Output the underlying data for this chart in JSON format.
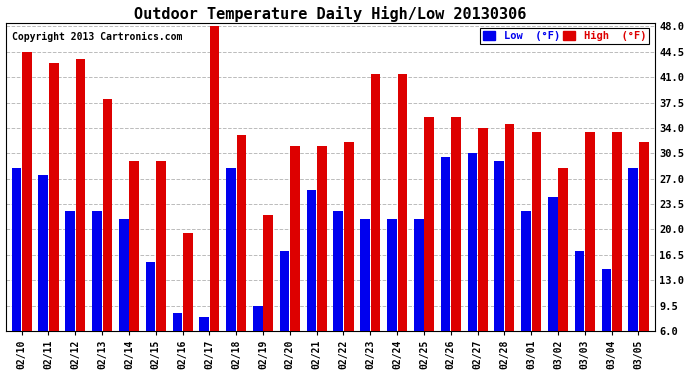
{
  "title": "Outdoor Temperature Daily High/Low 20130306",
  "copyright": "Copyright 2013 Cartronics.com",
  "legend_low_label": "Low  (°F)",
  "legend_high_label": "High  (°F)",
  "dates": [
    "02/10",
    "02/11",
    "02/12",
    "02/13",
    "02/14",
    "02/15",
    "02/16",
    "02/17",
    "02/18",
    "02/19",
    "02/20",
    "02/21",
    "02/22",
    "02/23",
    "02/24",
    "02/25",
    "02/26",
    "02/27",
    "02/28",
    "03/01",
    "03/02",
    "03/03",
    "03/04",
    "03/05"
  ],
  "high": [
    44.5,
    43.0,
    43.5,
    38.0,
    29.5,
    29.5,
    19.5,
    48.0,
    33.0,
    22.0,
    31.5,
    31.5,
    32.0,
    41.5,
    41.5,
    35.5,
    35.5,
    34.0,
    34.5,
    33.5,
    28.5,
    33.5,
    33.5,
    32.0
  ],
  "low": [
    28.5,
    27.5,
    22.5,
    22.5,
    21.5,
    15.5,
    8.5,
    8.0,
    28.5,
    9.5,
    17.0,
    25.5,
    22.5,
    21.5,
    21.5,
    21.5,
    30.0,
    30.5,
    29.5,
    22.5,
    24.5,
    17.0,
    14.5,
    28.5
  ],
  "low_color": "#0000ee",
  "high_color": "#dd0000",
  "bg_color": "#ffffff",
  "grid_color": "#bbbbbb",
  "yticks": [
    6.0,
    9.5,
    13.0,
    16.5,
    20.0,
    23.5,
    27.0,
    30.5,
    34.0,
    37.5,
    41.0,
    44.5,
    48.0
  ],
  "ymin": 6.0,
  "ymax": 48.5,
  "title_fontsize": 11,
  "copyright_fontsize": 7
}
